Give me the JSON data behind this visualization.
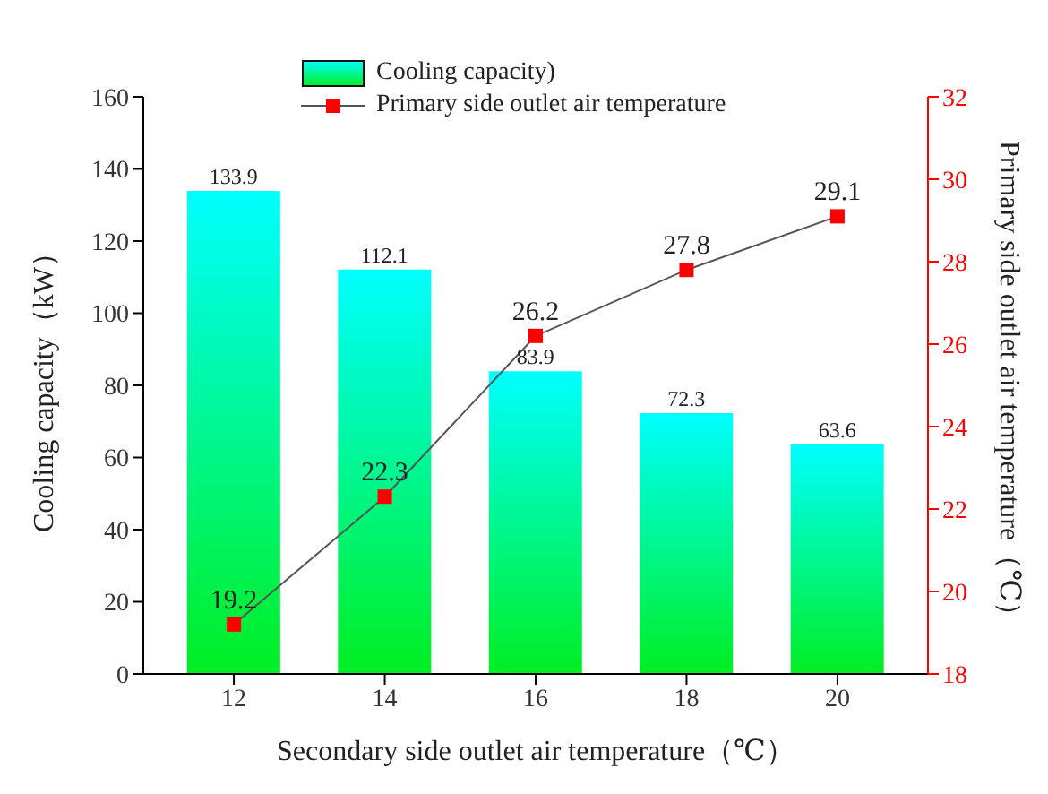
{
  "chart_data": {
    "type": "bar",
    "xlabel": "Secondary side outlet air temperature（℃）",
    "ylabel": "Cooling capacity（kW）",
    "y2label": "Primary side outlet air temperature（℃）",
    "categories": [
      "12",
      "14",
      "16",
      "18",
      "20"
    ],
    "series": [
      {
        "name": "Cooling capacity)",
        "color": "#00ffff",
        "values": [
          133.9,
          112.1,
          83.9,
          72.3,
          63.6
        ]
      },
      {
        "name": "Primary side outlet air temperature",
        "type": "line",
        "axis": "y2",
        "color": "#ff0000",
        "values": [
          19.2,
          22.3,
          26.2,
          27.8,
          29.1
        ]
      }
    ],
    "ylim": [
      0,
      160
    ],
    "yticks": [
      0,
      20,
      40,
      60,
      80,
      100,
      120,
      140,
      160
    ],
    "y2lim": [
      18,
      32
    ],
    "y2ticks": [
      18,
      20,
      22,
      24,
      26,
      28,
      30,
      32
    ],
    "data_labels": true,
    "legend": "top",
    "marker": "square",
    "line_style": "solid"
  }
}
